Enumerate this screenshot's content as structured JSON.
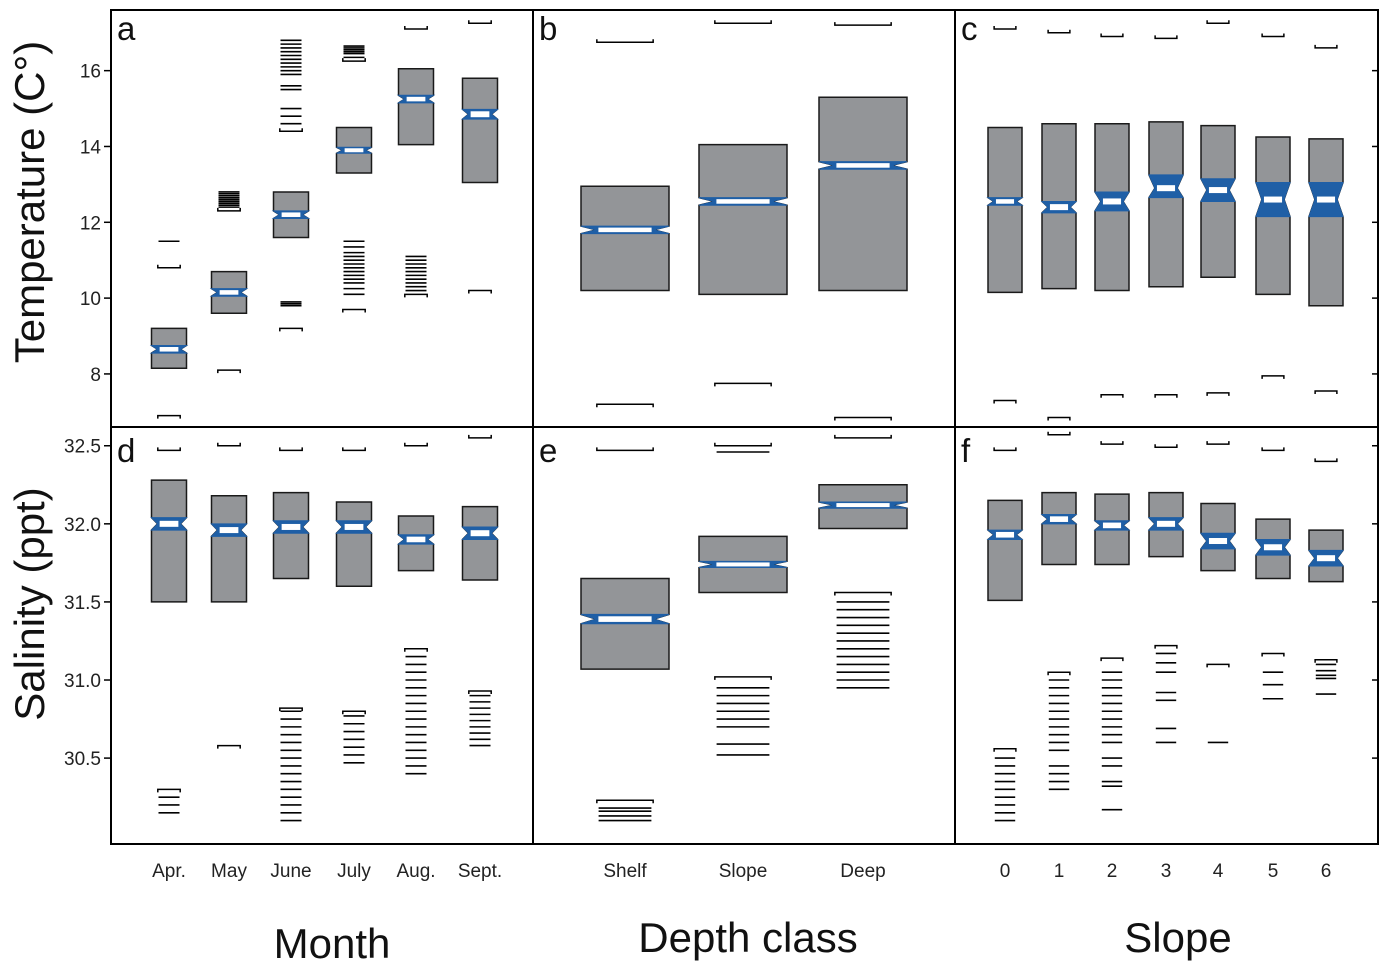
{
  "colors": {
    "box_fill": "#939598",
    "box_stroke": "#1a1a1a",
    "notch": "#1f5fa6",
    "median": "#ffffff",
    "frame": "#000000"
  },
  "y_axes": {
    "temperature": {
      "label": "Temperature (C°)",
      "ticks": [
        8,
        10,
        12,
        14,
        16
      ],
      "tick_labels": [
        "8",
        "10",
        "12",
        "14",
        "16"
      ],
      "range": [
        6.6,
        17.6
      ]
    },
    "salinity": {
      "label": "Salinity (ppt)",
      "ticks": [
        30.5,
        31.0,
        31.5,
        32.0,
        32.5
      ],
      "tick_labels": [
        "30.5",
        "31.0",
        "31.5",
        "32.0",
        "32.5"
      ],
      "range": [
        29.95,
        32.62
      ]
    }
  },
  "x_groups": [
    {
      "id": "month",
      "title": "Month",
      "categories": [
        "Apr.",
        "May",
        "June",
        "July",
        "Aug.",
        "Sept."
      ]
    },
    {
      "id": "depth",
      "title": "Depth class",
      "categories": [
        "Shelf",
        "Slope",
        "Deep"
      ]
    },
    {
      "id": "slope",
      "title": "Slope",
      "categories": [
        "0",
        "1",
        "2",
        "3",
        "4",
        "5",
        "6"
      ]
    }
  ],
  "chart_data": [
    {
      "type": "boxplot",
      "panel": "a",
      "variable": "temperature",
      "grouping": "month",
      "ylabel": "Temperature (C°)",
      "xlabel": "Month",
      "ylim": [
        6.6,
        17.6
      ],
      "categories": [
        "Apr.",
        "May",
        "June",
        "July",
        "Aug.",
        "Sept."
      ],
      "boxes": [
        {
          "q1": 8.15,
          "q3": 9.2,
          "median": 8.65,
          "notch_lo": 8.55,
          "notch_hi": 8.75,
          "whisker_lo": 6.9,
          "whisker_hi": 10.8,
          "outliers": [
            11.5
          ]
        },
        {
          "q1": 9.6,
          "q3": 10.7,
          "median": 10.15,
          "notch_lo": 10.05,
          "notch_hi": 10.25,
          "whisker_lo": 8.1,
          "whisker_hi": 12.3,
          "outliers": [
            12.4,
            12.45,
            12.5,
            12.55,
            12.6,
            12.65,
            12.7,
            12.75,
            12.8
          ]
        },
        {
          "q1": 11.6,
          "q3": 12.8,
          "median": 12.2,
          "notch_lo": 12.1,
          "notch_hi": 12.3,
          "whisker_lo": 9.2,
          "whisker_hi": 14.4,
          "outliers": [
            9.8,
            9.85,
            9.9,
            14.6,
            14.8,
            15.0,
            15.5,
            15.6,
            15.9,
            16.0,
            16.1,
            16.2,
            16.3,
            16.4,
            16.5,
            16.6,
            16.7,
            16.8
          ]
        },
        {
          "q1": 13.3,
          "q3": 14.5,
          "median": 13.9,
          "notch_lo": 13.82,
          "notch_hi": 13.98,
          "whisker_lo": 9.7,
          "whisker_hi": 16.25,
          "outliers": [
            10.1,
            10.25,
            10.4,
            10.5,
            10.6,
            10.7,
            10.8,
            10.9,
            11.0,
            11.1,
            11.2,
            11.35,
            11.5,
            16.35,
            16.45,
            16.5,
            16.55,
            16.6,
            16.65
          ]
        },
        {
          "q1": 14.05,
          "q3": 16.05,
          "median": 15.25,
          "notch_lo": 15.15,
          "notch_hi": 15.35,
          "whisker_lo": 10.1,
          "whisker_hi": 17.1,
          "outliers": [
            10.2,
            10.3,
            10.4,
            10.5,
            10.6,
            10.7,
            10.8,
            10.9,
            11.0,
            11.1
          ]
        },
        {
          "q1": 13.05,
          "q3": 15.8,
          "median": 14.85,
          "notch_lo": 14.72,
          "notch_hi": 14.98,
          "whisker_lo": 10.2,
          "whisker_hi": 17.25,
          "outliers": []
        }
      ]
    },
    {
      "type": "boxplot",
      "panel": "b",
      "variable": "temperature",
      "grouping": "depth",
      "ylabel": "Temperature (C°)",
      "xlabel": "Depth class",
      "ylim": [
        6.6,
        17.6
      ],
      "categories": [
        "Shelf",
        "Slope",
        "Deep"
      ],
      "boxes": [
        {
          "q1": 10.2,
          "q3": 12.95,
          "median": 11.8,
          "notch_lo": 11.7,
          "notch_hi": 11.9,
          "whisker_lo": 7.2,
          "whisker_hi": 16.75,
          "outliers": []
        },
        {
          "q1": 10.1,
          "q3": 14.05,
          "median": 12.55,
          "notch_lo": 12.45,
          "notch_hi": 12.65,
          "whisker_lo": 7.75,
          "whisker_hi": 17.25,
          "outliers": []
        },
        {
          "q1": 10.2,
          "q3": 15.3,
          "median": 13.5,
          "notch_lo": 13.4,
          "notch_hi": 13.6,
          "whisker_lo": 6.85,
          "whisker_hi": 17.2,
          "outliers": []
        }
      ]
    },
    {
      "type": "boxplot",
      "panel": "c",
      "variable": "temperature",
      "grouping": "slope",
      "ylabel": "Temperature (C°)",
      "xlabel": "Slope",
      "ylim": [
        6.6,
        17.6
      ],
      "categories": [
        "0",
        "1",
        "2",
        "3",
        "4",
        "5",
        "6"
      ],
      "boxes": [
        {
          "q1": 10.15,
          "q3": 14.5,
          "median": 12.55,
          "notch_lo": 12.45,
          "notch_hi": 12.65,
          "whisker_lo": 7.3,
          "whisker_hi": 17.1,
          "outliers": []
        },
        {
          "q1": 10.25,
          "q3": 14.6,
          "median": 12.4,
          "notch_lo": 12.25,
          "notch_hi": 12.55,
          "whisker_lo": 6.85,
          "whisker_hi": 17.0,
          "outliers": []
        },
        {
          "q1": 10.2,
          "q3": 14.6,
          "median": 12.55,
          "notch_lo": 12.3,
          "notch_hi": 12.8,
          "whisker_lo": 7.45,
          "whisker_hi": 16.9,
          "outliers": []
        },
        {
          "q1": 10.3,
          "q3": 14.65,
          "median": 12.9,
          "notch_lo": 12.65,
          "notch_hi": 13.25,
          "whisker_lo": 7.45,
          "whisker_hi": 16.85,
          "outliers": []
        },
        {
          "q1": 10.55,
          "q3": 14.55,
          "median": 12.85,
          "notch_lo": 12.55,
          "notch_hi": 13.15,
          "whisker_lo": 7.5,
          "whisker_hi": 17.25,
          "outliers": []
        },
        {
          "q1": 10.1,
          "q3": 14.25,
          "median": 12.6,
          "notch_lo": 12.15,
          "notch_hi": 13.05,
          "whisker_lo": 7.95,
          "whisker_hi": 16.9,
          "outliers": []
        },
        {
          "q1": 9.8,
          "q3": 14.2,
          "median": 12.6,
          "notch_lo": 12.15,
          "notch_hi": 13.05,
          "whisker_lo": 7.55,
          "whisker_hi": 16.6,
          "outliers": []
        }
      ]
    },
    {
      "type": "boxplot",
      "panel": "d",
      "variable": "salinity",
      "grouping": "month",
      "ylabel": "Salinity (ppt)",
      "xlabel": "Month",
      "ylim": [
        29.95,
        32.62
      ],
      "categories": [
        "Apr.",
        "May",
        "June",
        "July",
        "Aug.",
        "Sept."
      ],
      "boxes": [
        {
          "q1": 31.5,
          "q3": 32.28,
          "median": 32.0,
          "notch_lo": 31.96,
          "notch_hi": 32.04,
          "whisker_lo": 30.3,
          "whisker_hi": 32.47,
          "outliers": [
            30.2,
            30.25,
            30.15
          ]
        },
        {
          "q1": 31.5,
          "q3": 32.18,
          "median": 31.96,
          "notch_lo": 31.92,
          "notch_hi": 32.0,
          "whisker_lo": 30.58,
          "whisker_hi": 32.5,
          "outliers": []
        },
        {
          "q1": 31.65,
          "q3": 32.2,
          "median": 31.98,
          "notch_lo": 31.94,
          "notch_hi": 32.02,
          "whisker_lo": 30.82,
          "whisker_hi": 32.47,
          "outliers": [
            30.1,
            30.15,
            30.2,
            30.25,
            30.3,
            30.35,
            30.4,
            30.45,
            30.5,
            30.55,
            30.6,
            30.65,
            30.7,
            30.75,
            30.8
          ]
        },
        {
          "q1": 31.6,
          "q3": 32.14,
          "median": 31.98,
          "notch_lo": 31.94,
          "notch_hi": 32.02,
          "whisker_lo": 30.8,
          "whisker_hi": 32.47,
          "outliers": [
            30.47,
            30.52,
            30.57,
            30.62,
            30.67,
            30.72,
            30.77
          ]
        },
        {
          "q1": 31.7,
          "q3": 32.05,
          "median": 31.9,
          "notch_lo": 31.87,
          "notch_hi": 31.93,
          "whisker_lo": 31.2,
          "whisker_hi": 32.5,
          "outliers": [
            30.4,
            30.45,
            30.5,
            30.55,
            30.6,
            30.65,
            30.7,
            30.75,
            30.8,
            30.85,
            30.9,
            30.95,
            31.0,
            31.05,
            31.1,
            31.15
          ]
        },
        {
          "q1": 31.64,
          "q3": 32.11,
          "median": 31.94,
          "notch_lo": 31.9,
          "notch_hi": 31.98,
          "whisker_lo": 30.93,
          "whisker_hi": 32.55,
          "outliers": [
            30.58,
            30.62,
            30.66,
            30.7,
            30.74,
            30.78,
            30.82,
            30.86,
            30.9
          ]
        }
      ]
    },
    {
      "type": "boxplot",
      "panel": "e",
      "variable": "salinity",
      "grouping": "depth",
      "ylabel": "Salinity (ppt)",
      "xlabel": "Depth class",
      "ylim": [
        29.95,
        32.62
      ],
      "categories": [
        "Shelf",
        "Slope",
        "Deep"
      ],
      "boxes": [
        {
          "q1": 31.07,
          "q3": 31.65,
          "median": 31.39,
          "notch_lo": 31.36,
          "notch_hi": 31.42,
          "whisker_lo": 30.23,
          "whisker_hi": 32.47,
          "outliers": [
            30.1,
            30.13,
            30.16,
            30.18
          ]
        },
        {
          "q1": 31.56,
          "q3": 31.92,
          "median": 31.74,
          "notch_lo": 31.72,
          "notch_hi": 31.76,
          "whisker_lo": 31.02,
          "whisker_hi": 32.5,
          "outliers": [
            30.52,
            30.59,
            30.7,
            30.75,
            30.8,
            30.85,
            30.9,
            30.95,
            32.46
          ]
        },
        {
          "q1": 31.97,
          "q3": 32.25,
          "median": 32.12,
          "notch_lo": 32.1,
          "notch_hi": 32.14,
          "whisker_lo": 31.56,
          "whisker_hi": 32.55,
          "outliers": [
            30.95,
            31.0,
            31.05,
            31.1,
            31.15,
            31.2,
            31.25,
            31.3,
            31.35,
            31.4,
            31.45,
            31.5
          ]
        }
      ]
    },
    {
      "type": "boxplot",
      "panel": "f",
      "variable": "salinity",
      "grouping": "slope",
      "ylabel": "Salinity (ppt)",
      "xlabel": "Slope",
      "ylim": [
        29.95,
        32.62
      ],
      "categories": [
        "0",
        "1",
        "2",
        "3",
        "4",
        "5",
        "6"
      ],
      "boxes": [
        {
          "q1": 31.51,
          "q3": 32.15,
          "median": 31.93,
          "notch_lo": 31.9,
          "notch_hi": 31.96,
          "whisker_lo": 30.56,
          "whisker_hi": 32.47,
          "outliers": [
            30.1,
            30.15,
            30.2,
            30.25,
            30.3,
            30.35,
            30.4,
            30.45,
            30.5
          ]
        },
        {
          "q1": 31.74,
          "q3": 32.2,
          "median": 32.03,
          "notch_lo": 32.0,
          "notch_hi": 32.06,
          "whisker_lo": 31.05,
          "whisker_hi": 32.57,
          "outliers": [
            30.3,
            30.35,
            30.4,
            30.45,
            30.55,
            30.6,
            30.65,
            30.7,
            30.75,
            30.8,
            30.85,
            30.9,
            30.95,
            31.0
          ]
        },
        {
          "q1": 31.74,
          "q3": 32.19,
          "median": 31.99,
          "notch_lo": 31.96,
          "notch_hi": 32.02,
          "whisker_lo": 31.14,
          "whisker_hi": 32.51,
          "outliers": [
            30.17,
            30.32,
            30.35,
            30.45,
            30.5,
            30.6,
            30.65,
            30.7,
            30.75,
            30.8,
            30.85,
            30.9,
            30.95,
            31.0,
            31.05
          ]
        },
        {
          "q1": 31.79,
          "q3": 32.2,
          "median": 32.0,
          "notch_lo": 31.96,
          "notch_hi": 32.04,
          "whisker_lo": 31.22,
          "whisker_hi": 32.49,
          "outliers": [
            30.6,
            30.69,
            30.87,
            30.92,
            31.05,
            31.11,
            31.17
          ]
        },
        {
          "q1": 31.7,
          "q3": 32.13,
          "median": 31.89,
          "notch_lo": 31.84,
          "notch_hi": 31.94,
          "whisker_lo": 31.1,
          "whisker_hi": 32.51,
          "outliers": [
            30.6
          ]
        },
        {
          "q1": 31.65,
          "q3": 32.03,
          "median": 31.85,
          "notch_lo": 31.8,
          "notch_hi": 31.9,
          "whisker_lo": 31.17,
          "whisker_hi": 32.47,
          "outliers": [
            30.88,
            30.97,
            31.05
          ]
        },
        {
          "q1": 31.63,
          "q3": 31.96,
          "median": 31.78,
          "notch_lo": 31.73,
          "notch_hi": 31.83,
          "whisker_lo": 31.13,
          "whisker_hi": 32.4,
          "outliers": [
            30.91,
            31.01,
            31.03,
            31.06,
            31.1
          ]
        }
      ]
    }
  ]
}
